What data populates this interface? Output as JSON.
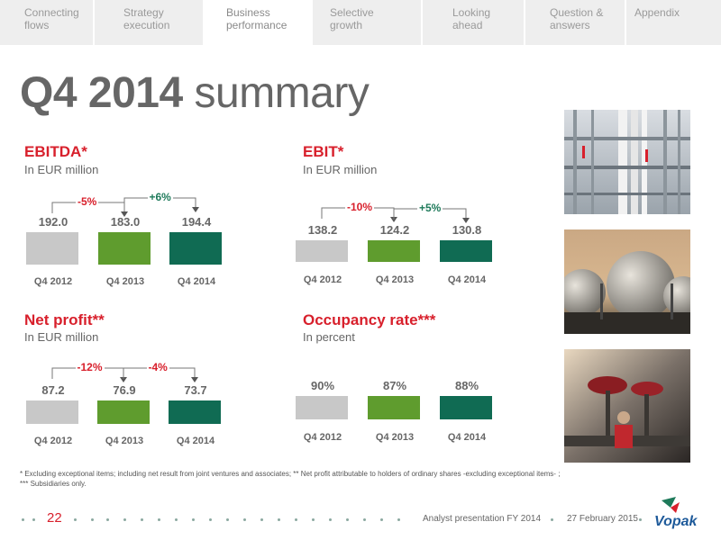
{
  "nav": {
    "tabs": [
      {
        "label_line1": "Connecting",
        "label_line2": "flows"
      },
      {
        "label_line1": "Strategy",
        "label_line2": "execution"
      },
      {
        "label_line1": "Business",
        "label_line2": "performance"
      },
      {
        "label_line1": "Selective",
        "label_line2": "growth"
      },
      {
        "label_line1": "Looking",
        "label_line2": "ahead"
      },
      {
        "label_line1": "Question &",
        "label_line2": "answers"
      },
      {
        "label_line1": "Appendix",
        "label_line2": ""
      }
    ],
    "active_index": 2
  },
  "title": {
    "bold": "Q4 2014",
    "rest": " summary"
  },
  "colors": {
    "red": "#d8202c",
    "gray_bar": "#c8c8c8",
    "green_bar": "#5f9c2e",
    "dark_green_bar": "#106b53",
    "green_text": "#1e7a5a"
  },
  "sections": [
    {
      "title": "EBITDA*",
      "subtitle": "In EUR million",
      "chart_data": {
        "type": "bar",
        "categories": [
          "Q4 2012",
          "Q4 2013",
          "Q4 2014"
        ],
        "values": [
          192.0,
          183.0,
          194.4
        ],
        "value_labels": [
          "192.0",
          "183.0",
          "194.4"
        ],
        "changes": [
          {
            "label": "-5%",
            "color": "red"
          },
          {
            "label": "+6%",
            "color": "green"
          }
        ]
      }
    },
    {
      "title": "EBIT*",
      "subtitle": "In EUR million",
      "chart_data": {
        "type": "bar",
        "categories": [
          "Q4 2012",
          "Q4 2013",
          "Q4 2014"
        ],
        "values": [
          138.2,
          124.2,
          130.8
        ],
        "value_labels": [
          "138.2",
          "124.2",
          "130.8"
        ],
        "changes": [
          {
            "label": "-10%",
            "color": "red"
          },
          {
            "label": "+5%",
            "color": "green"
          }
        ]
      }
    },
    {
      "title": "Net profit**",
      "subtitle": "In EUR million",
      "chart_data": {
        "type": "bar",
        "categories": [
          "Q4 2012",
          "Q4 2013",
          "Q4 2014"
        ],
        "values": [
          87.2,
          76.9,
          73.7
        ],
        "value_labels": [
          "87.2",
          "76.9",
          "73.7"
        ],
        "changes": [
          {
            "label": "-12%",
            "color": "red"
          },
          {
            "label": "-4%",
            "color": "red"
          }
        ]
      }
    },
    {
      "title": "Occupancy rate***",
      "subtitle": "In percent",
      "chart_data": {
        "type": "bar",
        "categories": [
          "Q4 2012",
          "Q4 2013",
          "Q4 2014"
        ],
        "values": [
          90,
          87,
          88
        ],
        "value_labels": [
          "90%",
          "87%",
          "88%"
        ],
        "changes": []
      }
    }
  ],
  "footnote": {
    "line1": "* Excluding exceptional items; including net result from joint ventures and associates; ** Net profit attributable to holders of ordinary shares -excluding exceptional items- ;",
    "line2": "*** Subsidiaries only."
  },
  "footer": {
    "page": "22",
    "presentation": "Analyst presentation FY 2014",
    "date": "27 February 2015",
    "logo_text": "Vopak"
  },
  "photos": [
    {
      "icon": "industrial-facility-photo"
    },
    {
      "icon": "storage-tanks-photo"
    },
    {
      "icon": "valve-worker-photo"
    }
  ]
}
